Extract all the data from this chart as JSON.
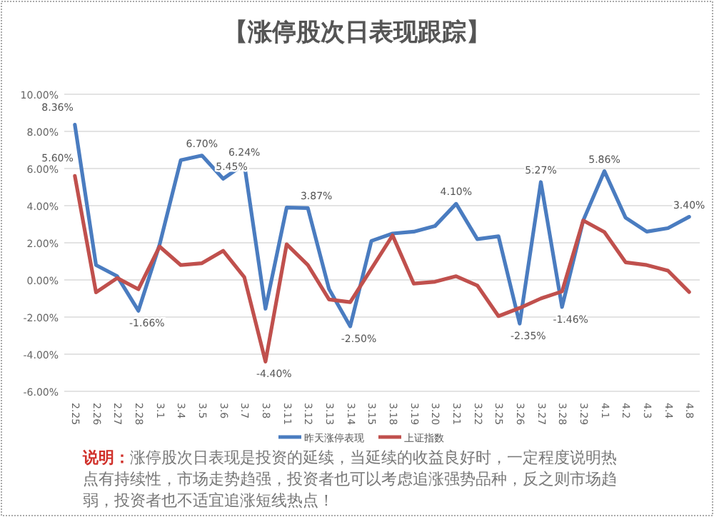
{
  "chart_data": {
    "type": "line",
    "title": "【涨停股次日表现跟踪】",
    "categories": [
      "2.25",
      "2.26",
      "2.27",
      "2.28",
      "3.1",
      "3.4",
      "3.5",
      "3.6",
      "3.7",
      "3.8",
      "3.11",
      "3.12",
      "3.13",
      "3.14",
      "3.15",
      "3.18",
      "3.19",
      "3.20",
      "3.21",
      "3.22",
      "3.25",
      "3.26",
      "3.27",
      "3.28",
      "3.29",
      "4.1",
      "4.2",
      "4.3",
      "4.4",
      "4.8"
    ],
    "series": [
      {
        "name": "昨天涨停表现",
        "color": "#4a7cc0",
        "values": [
          8.36,
          0.8,
          0.2,
          -1.66,
          1.9,
          6.45,
          6.7,
          5.45,
          6.24,
          -1.55,
          3.9,
          3.87,
          -0.49,
          -2.5,
          2.1,
          2.5,
          2.6,
          2.9,
          4.1,
          2.2,
          2.35,
          -2.35,
          5.27,
          -1.46,
          3.2,
          5.86,
          3.35,
          2.6,
          2.79,
          3.4
        ],
        "value_labels": [
          "8.36%",
          null,
          null,
          "-1.66%",
          null,
          null,
          "6.70%",
          "5.45%",
          "6.24%",
          null,
          null,
          "3.87%",
          null,
          "-2.50%",
          null,
          null,
          null,
          null,
          "4.10%",
          null,
          null,
          "-2.35%",
          "5.27%",
          "-1.46%",
          null,
          "5.86%",
          null,
          null,
          null,
          "3.40%"
        ]
      },
      {
        "name": "上证指数",
        "color": "#c0504d",
        "values": [
          5.6,
          -0.67,
          0.1,
          -0.5,
          1.8,
          0.8,
          0.9,
          1.57,
          0.15,
          -4.4,
          1.92,
          0.8,
          -1.05,
          -1.2,
          0.6,
          2.4,
          -0.2,
          -0.1,
          0.2,
          -0.3,
          -1.95,
          -1.51,
          -1.0,
          -0.62,
          3.2,
          2.58,
          0.95,
          0.8,
          0.5,
          -0.65
        ],
        "value_labels": [
          "5.60%",
          null,
          null,
          null,
          null,
          null,
          null,
          null,
          null,
          "-4.40%",
          null,
          null,
          null,
          null,
          null,
          null,
          null,
          null,
          null,
          null,
          null,
          null,
          null,
          null,
          null,
          null,
          null,
          null,
          null,
          null
        ]
      }
    ],
    "ylim": [
      -6,
      10
    ],
    "yticks": [
      {
        "value": -6,
        "label": "-6.00%"
      },
      {
        "value": -4,
        "label": "-4.00%"
      },
      {
        "value": -2,
        "label": "-2.00%"
      },
      {
        "value": 0,
        "label": "0.00%"
      },
      {
        "value": 2,
        "label": "2.00%"
      },
      {
        "value": 4,
        "label": "4.00%"
      },
      {
        "value": 6,
        "label": "6.00%"
      },
      {
        "value": 8,
        "label": "8.00%"
      },
      {
        "value": 10,
        "label": "10.00%"
      }
    ],
    "grid": "y",
    "legend": "bottom",
    "marker": "none",
    "line_style": "solid",
    "annotations": [
      "**说明：**涨停股次日表现是投资的延续，当延续的收益良好时，一定程度说明热点有持续性，市场走势趋强，投资者也可以考虑追涨强势品种，反之则市场趋弱，投资者也不适宜追涨短线热点！"
    ]
  }
}
